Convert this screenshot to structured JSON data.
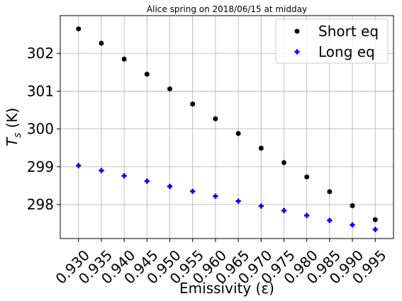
{
  "chart_data": {
    "type": "scatter",
    "title": "Alice spring on 2018/06/15 at midday",
    "xlabel": "Emissivity (ε)",
    "ylabel_main": "T",
    "ylabel_sub": "s",
    "ylabel_unit": " (K)",
    "x": [
      0.93,
      0.935,
      0.94,
      0.945,
      0.95,
      0.955,
      0.96,
      0.965,
      0.97,
      0.975,
      0.98,
      0.985,
      0.99,
      0.995
    ],
    "x_tick_labels": [
      "0.930",
      "0.935",
      "0.940",
      "0.945",
      "0.950",
      "0.955",
      "0.960",
      "0.965",
      "0.970",
      "0.975",
      "0.980",
      "0.985",
      "0.990",
      "0.995"
    ],
    "y_ticks": [
      298,
      299,
      300,
      301,
      302
    ],
    "xlim": [
      0.926,
      0.999
    ],
    "ylim": [
      297.1,
      303.0
    ],
    "grid": true,
    "legend_placement": "top-right",
    "series": [
      {
        "name": "Short eq",
        "color": "#000000",
        "marker": "hexagon",
        "values": [
          302.65,
          302.27,
          301.85,
          301.45,
          301.06,
          300.66,
          300.27,
          299.88,
          299.49,
          299.11,
          298.73,
          298.34,
          297.97,
          297.6
        ]
      },
      {
        "name": "Long eq",
        "color": "#0000ff",
        "marker": "plus-filled",
        "values": [
          299.03,
          298.9,
          298.76,
          298.62,
          298.48,
          298.35,
          298.22,
          298.09,
          297.96,
          297.84,
          297.71,
          297.58,
          297.46,
          297.34
        ]
      }
    ]
  }
}
